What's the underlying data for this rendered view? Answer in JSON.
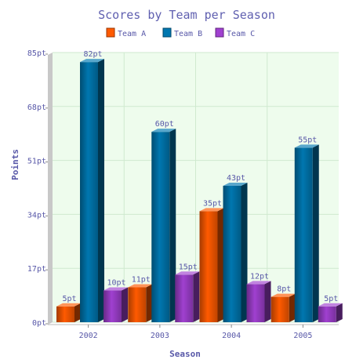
{
  "chart_data": {
    "type": "bar",
    "title": "Scores by Team per Season",
    "xlabel": "Season",
    "ylabel": "Points",
    "categories": [
      "2002",
      "2003",
      "2004",
      "2005"
    ],
    "ylim": [
      0,
      85
    ],
    "yticks": [
      0,
      17,
      34,
      51,
      68,
      85
    ],
    "ytick_labels": [
      "0pt",
      "17pt",
      "34pt",
      "51pt",
      "68pt",
      "85pt"
    ],
    "grid": true,
    "legend_position": "top-center",
    "series": [
      {
        "name": "Team A",
        "color": "#ff5a00",
        "values": [
          5,
          11,
          35,
          8
        ],
        "labels": [
          "5pt",
          "11pt",
          "35pt",
          "8pt"
        ]
      },
      {
        "name": "Team B",
        "color": "#0077b0",
        "values": [
          82,
          60,
          43,
          55
        ],
        "labels": [
          "82pt",
          "60pt",
          "43pt",
          "55pt"
        ]
      },
      {
        "name": "Team C",
        "color": "#a040d0",
        "values": [
          10,
          15,
          12,
          5
        ],
        "labels": [
          "10pt",
          "15pt",
          "12pt",
          "5pt"
        ]
      }
    ],
    "colors": {
      "plot_background": "#eefced",
      "grid": "#cfe9cf",
      "text": "#5858a8",
      "title": "#6060b0",
      "axis": "#888888"
    }
  }
}
